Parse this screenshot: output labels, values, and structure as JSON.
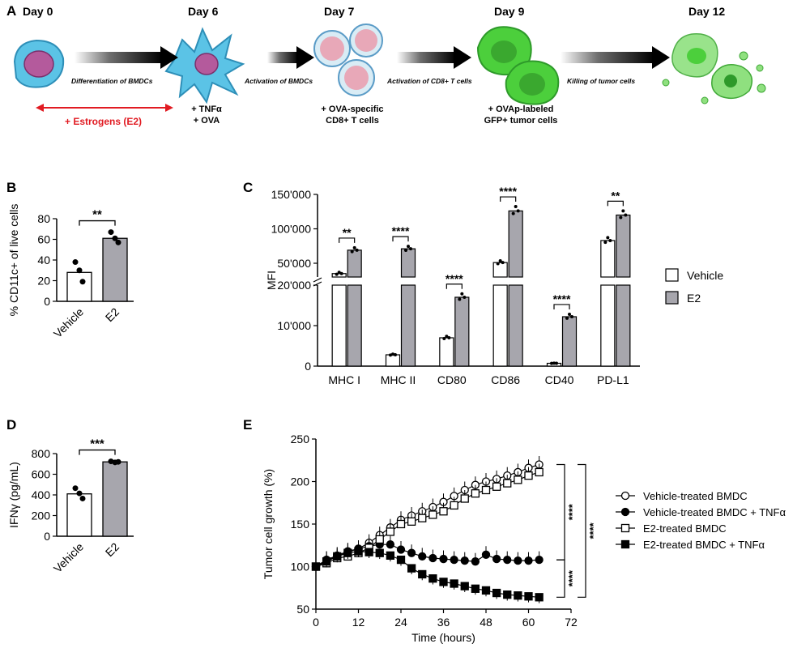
{
  "panels": {
    "a": "A",
    "b": "B",
    "c": "C",
    "d": "D",
    "e": "E"
  },
  "timeline": {
    "days": [
      "Day 0",
      "Day 6",
      "Day 7",
      "Day 9",
      "Day 12"
    ],
    "steps": [
      "Differentiation of BMDCs",
      "Activation of BMDCs",
      "Activation of CD8+ T cells",
      "Killing of tumor cells"
    ],
    "additions": {
      "day6_line1": "+ TNFα",
      "day6_line2": "+ OVA",
      "day7_line1": "+ OVA-specific",
      "day7_line2": "CD8+ T cells",
      "day9_line1": "+ OVAp-labeled",
      "day9_line2": "GFP+ tumor cells"
    },
    "estrogens": "+ Estrogens (E2)",
    "colors": {
      "bmdc": "#5bc3e6",
      "nucleus": "#b45a9c",
      "t_cell": "#e8a8b8",
      "tumor": "#4ccf3c",
      "estrogen_arrow": "#e11b22"
    }
  },
  "chart_data": [
    {
      "id": "B",
      "type": "bar",
      "categories": [
        "Vehicle",
        "E2"
      ],
      "values": [
        28,
        61
      ],
      "points": [
        [
          38,
          30,
          19
        ],
        [
          67,
          61,
          57
        ]
      ],
      "ylabel": "% CD11c+ of live cells",
      "ylim": [
        0,
        80
      ],
      "yticks": [
        "0",
        "20",
        "40",
        "60",
        "80"
      ],
      "significance": "**",
      "colors": [
        "#ffffff",
        "#a7a6ad"
      ]
    },
    {
      "id": "C",
      "type": "bar",
      "categories": [
        "MHC I",
        "MHC II",
        "CD80",
        "CD86",
        "CD40",
        "PD-L1"
      ],
      "series": [
        {
          "name": "Vehicle",
          "values": [
            35000,
            2800,
            7000,
            51000,
            700,
            83000
          ],
          "color": "#ffffff"
        },
        {
          "name": "E2",
          "values": [
            69000,
            71000,
            17000,
            126000,
            12200,
            120000
          ],
          "color": "#a7a6ad"
        }
      ],
      "ylabel": "MFI",
      "yticks_lower": [
        "0",
        "10'000",
        "20'000"
      ],
      "yticks_upper": [
        "50'000",
        "100'000",
        "150'000"
      ],
      "axis_break": [
        20000,
        30000
      ],
      "significance": [
        "**",
        "****",
        "****",
        "****",
        "****",
        "**"
      ],
      "legend_position": "right"
    },
    {
      "id": "D",
      "type": "bar",
      "categories": [
        "Vehicle",
        "E2"
      ],
      "values": [
        410,
        720
      ],
      "points": [
        [
          465,
          415,
          365
        ],
        [
          725,
          715,
          720
        ]
      ],
      "ylabel": "IFNγ (pg/mL)",
      "ylim": [
        0,
        800
      ],
      "yticks": [
        "0",
        "200",
        "400",
        "600",
        "800"
      ],
      "significance": "***",
      "colors": [
        "#ffffff",
        "#a7a6ad"
      ]
    },
    {
      "id": "E",
      "type": "line",
      "x": [
        0,
        3,
        6,
        9,
        12,
        15,
        18,
        21,
        24,
        27,
        30,
        33,
        36,
        39,
        42,
        45,
        48,
        51,
        54,
        57,
        60,
        63
      ],
      "series": [
        {
          "name": "Vehicle-treated BMDC",
          "marker": "open-circle",
          "values": [
            100,
            108,
            112,
            117,
            121,
            128,
            137,
            146,
            155,
            160,
            165,
            170,
            176,
            183,
            190,
            196,
            200,
            203,
            207,
            211,
            216,
            220
          ]
        },
        {
          "name": "Vehicle-treated BMDC + TNFα",
          "marker": "filled-circle",
          "values": [
            100,
            108,
            113,
            118,
            121,
            124,
            126,
            126,
            120,
            116,
            112,
            110,
            109,
            108,
            107,
            106,
            114,
            109,
            108,
            107,
            107,
            108
          ]
        },
        {
          "name": "E2-treated BMDC",
          "marker": "open-square",
          "values": [
            100,
            104,
            110,
            112,
            116,
            122,
            132,
            141,
            150,
            153,
            157,
            161,
            165,
            172,
            180,
            186,
            190,
            194,
            198,
            202,
            207,
            211
          ]
        },
        {
          "name": "E2-treated BMDC + TNFα",
          "marker": "filled-square",
          "values": [
            100,
            106,
            112,
            116,
            118,
            117,
            116,
            113,
            108,
            98,
            91,
            86,
            82,
            80,
            77,
            74,
            72,
            69,
            67,
            66,
            65,
            64
          ]
        }
      ],
      "xlabel": "Time (hours)",
      "ylabel": "Tumor cell growth (%)",
      "xlim": [
        0,
        72
      ],
      "ylim": [
        50,
        250
      ],
      "xticks": [
        "0",
        "12",
        "24",
        "36",
        "48",
        "60",
        "72"
      ],
      "yticks": [
        "50",
        "100",
        "150",
        "200",
        "250"
      ],
      "significance": [
        "****",
        "****",
        "****"
      ],
      "legend_position": "right"
    }
  ]
}
